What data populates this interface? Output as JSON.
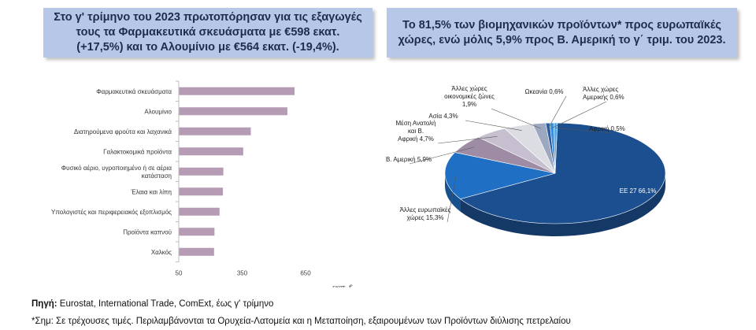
{
  "left_title": "Στο γ' τρίμηνο του 2023 πρωτοπόρησαν για τις εξαγωγές τους τα Φαρμακευτικά σκευάσματα με €598 εκατ. (+17,5%) και το Αλουμίνιο με €564 εκατ. (-19,4%).",
  "right_title": "Το 81,5% των βιομηχανικών προϊόντων* προς ευρωπαϊκές χώρες, ενώ μόλις 5,9% προς Β. Αμερική το γ΄ τριμ. του 2023.",
  "footer": {
    "source_label": "Πηγή:",
    "source_text": " Eurostat, International Trade, ComExt, έως γ' τρίμηνο",
    "note": "*Σημ: Σε τρέχουσες τιμές. Περιλαμβάνονται τα Ορυχεία-Λατομεία και η Μεταποίηση, εξαιρουμένων των Προϊόντων διύλισης πετρελαίου"
  },
  "colors": {
    "title_bg": "#b7c7e8",
    "bar": "#b59cb4"
  },
  "chart_data": [
    {
      "type": "bar",
      "orientation": "horizontal",
      "categories": [
        "Φαρμακευτικά σκευάσματα",
        "Αλουμίνιο",
        "Διατηρούμενα φρούτα και λαχανικά",
        "Γαλακτοκομικά προϊόντα",
        "Φυσικό αέριο, υγροποιημένο ή σε αέρια κατάσταση",
        "Έλαια και λίπη",
        "Υπολογιστές και περιφερειακός εξοπλισμός",
        "Προϊόντα καπνού",
        "Χαλκός"
      ],
      "values": [
        598,
        564,
        391,
        355,
        261,
        259,
        243,
        219,
        217
      ],
      "xlim": [
        50,
        650
      ],
      "xticks": [
        "50",
        "350",
        "650"
      ],
      "xlabel": "εκατ. €",
      "grid": false
    },
    {
      "type": "pie",
      "style": "3d",
      "slices": [
        {
          "label": "ΕΕ 27 66,1%",
          "value": 66.1,
          "color": "#1c4f8f"
        },
        {
          "label": "Άλλες ευρωπαϊκές χώρες 15,3%",
          "value": 15.3,
          "color": "#1f6fc4"
        },
        {
          "label": "Β. Αμερική 5,9%",
          "value": 5.9,
          "color": "#9e8ca5"
        },
        {
          "label": "Μέση Ανατολή και Β. Αφρική 4,7%",
          "value": 4.7,
          "color": "#c6bfd0"
        },
        {
          "label": "Ασία 4,3%",
          "value": 4.3,
          "color": "#dcdde2"
        },
        {
          "label": "Άλλες χώρες οικονομικές ζώνες 1,9%",
          "value": 1.9,
          "color": "#9ba8c0"
        },
        {
          "label": "Ωκεανία 0,6%",
          "value": 0.6,
          "color": "#2a5ea4"
        },
        {
          "label": "Άλλες χώρες Αμερικής 0,6%",
          "value": 0.6,
          "color": "#3d8fd8"
        },
        {
          "label": "Αφρική 0,5%",
          "value": 0.5,
          "color": "#5aa7e3"
        }
      ]
    }
  ]
}
